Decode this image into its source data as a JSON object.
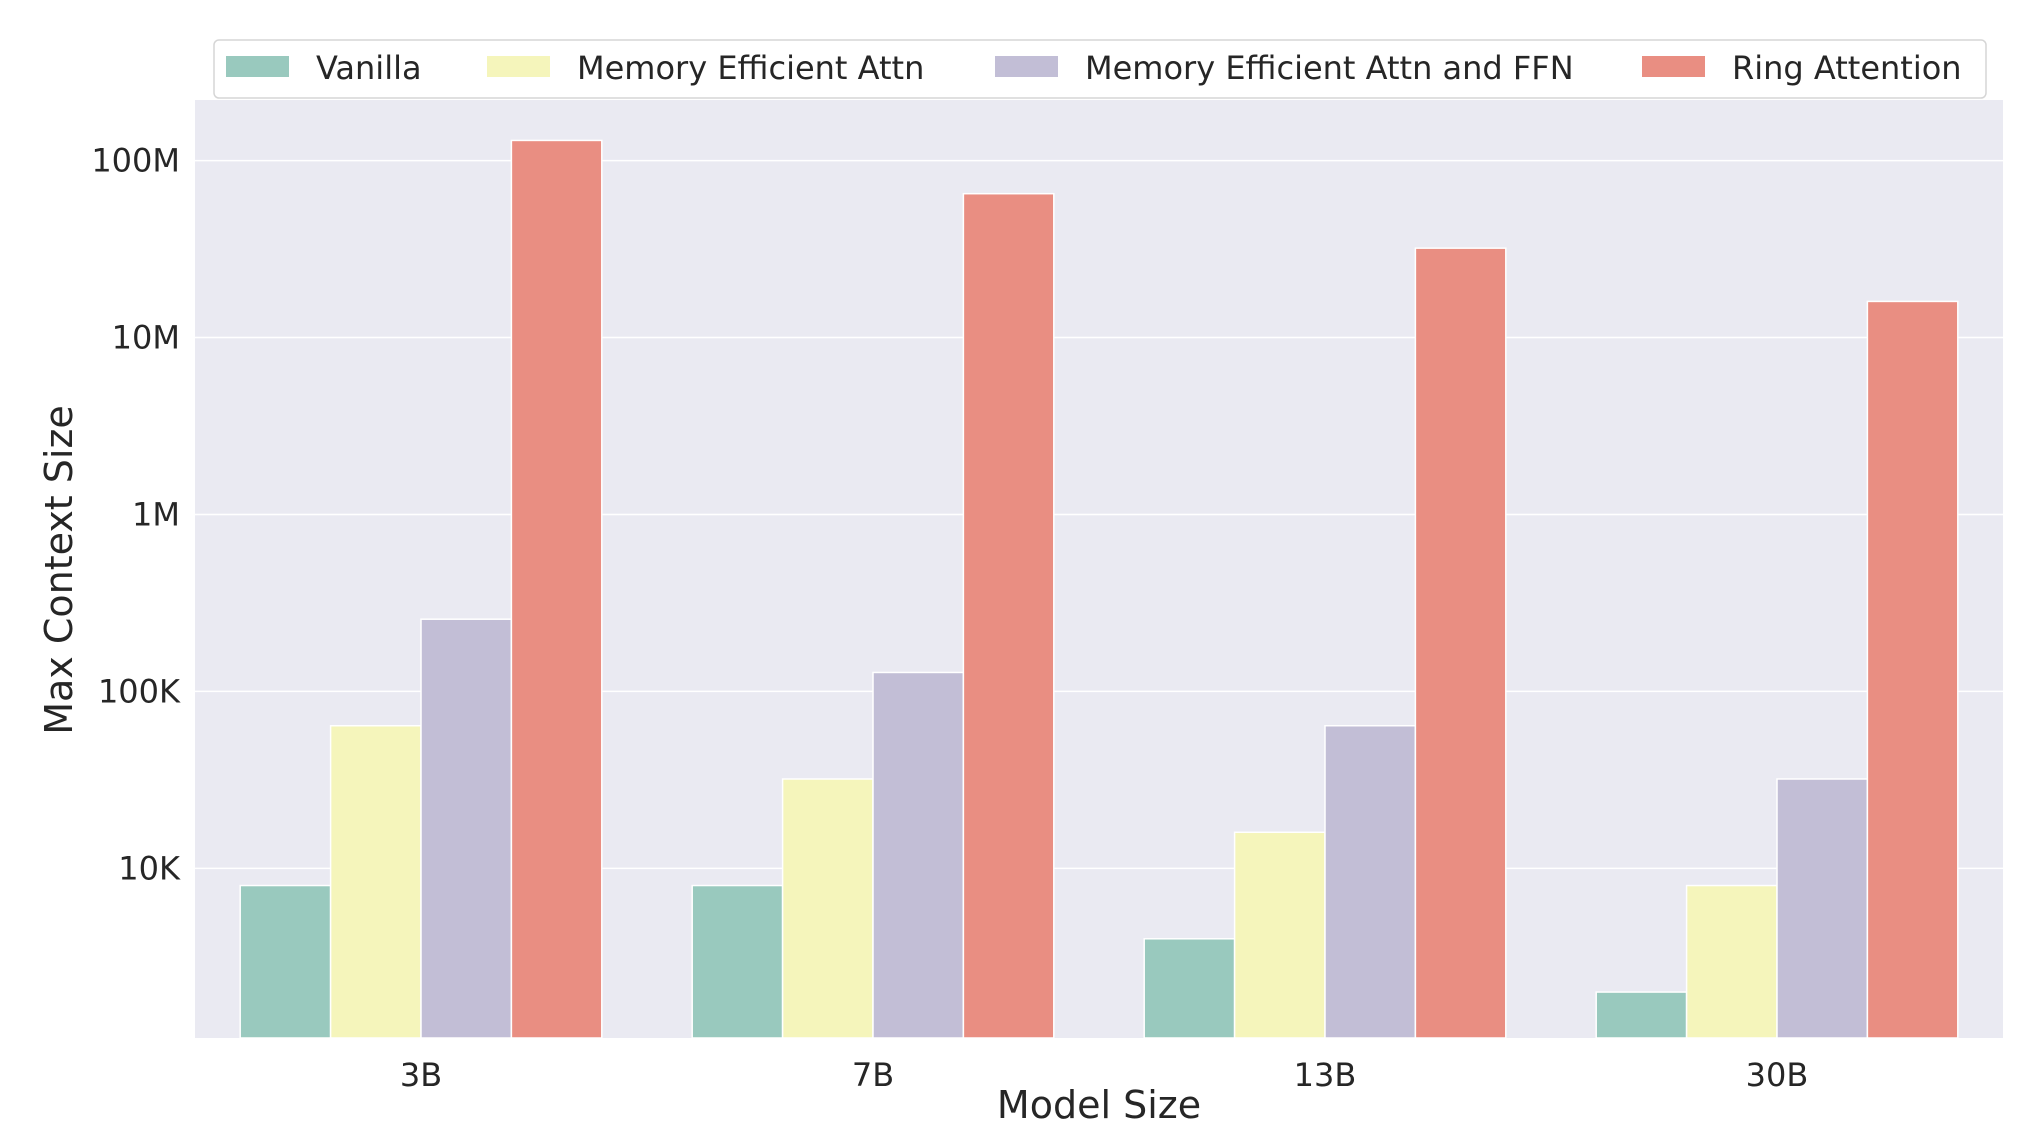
{
  "chart_data": {
    "type": "bar",
    "title": "",
    "xlabel": "Model Size",
    "ylabel": "Max Context Size",
    "yscale": "log",
    "ylim": [
      1100,
      220000000
    ],
    "yticks": [
      {
        "value": 10000,
        "label": "10K"
      },
      {
        "value": 100000,
        "label": "100K"
      },
      {
        "value": 1000000,
        "label": "1M"
      },
      {
        "value": 10000000,
        "label": "10M"
      },
      {
        "value": 100000000,
        "label": "100M"
      }
    ],
    "categories": [
      "3B",
      "7B",
      "13B",
      "30B"
    ],
    "series": [
      {
        "name": "Vanilla",
        "color": "#99c9be",
        "values": [
          8000,
          8000,
          4000,
          2000
        ]
      },
      {
        "name": "Memory Efficient Attn",
        "color": "#f5f5bb",
        "values": [
          64000,
          32000,
          16000,
          8000
        ]
      },
      {
        "name": "Memory Efficient Attn and FFN",
        "color": "#c2bed6",
        "values": [
          256000,
          128000,
          64000,
          32000
        ]
      },
      {
        "name": "Ring Attention",
        "color": "#e98e82",
        "values": [
          130000000,
          65000000,
          32000000,
          16000000
        ]
      }
    ],
    "grid": true,
    "legend_position": "top",
    "plot_background": "#eaeaf2"
  }
}
